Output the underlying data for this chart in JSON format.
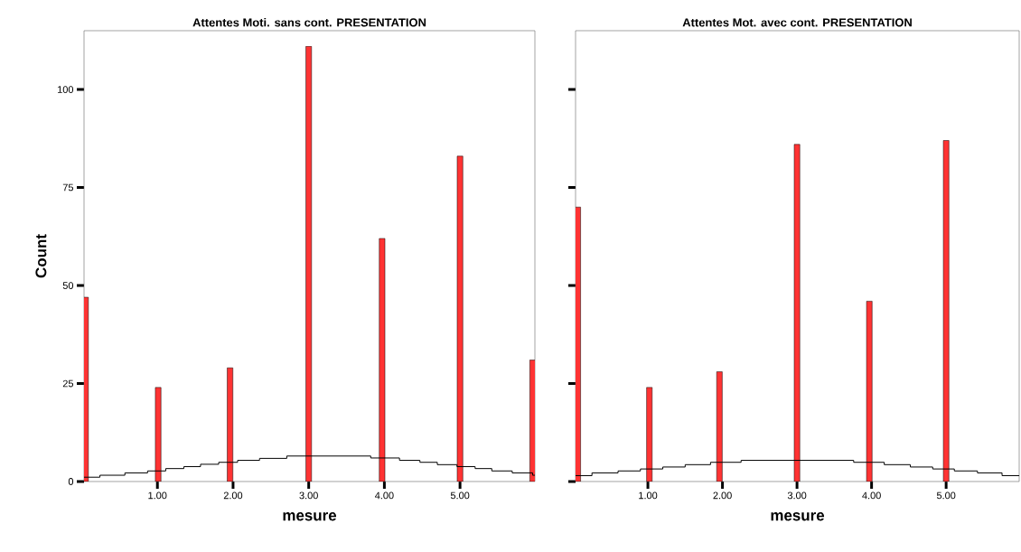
{
  "chart_data": [
    {
      "type": "bar",
      "title": "Attentes Moti. sans cont. PRESENTATION",
      "xlabel": "mesure",
      "ylabel": "Count",
      "series": [
        {
          "color": "#ff3333",
          "x": [
            0.05,
            1.01,
            1.96,
            3.0,
            3.97,
            5.0,
            5.96
          ],
          "values": [
            47,
            24,
            29,
            111,
            62,
            83,
            31
          ]
        },
        {
          "type": "step",
          "color": "#000000",
          "x": [
            0.03,
            0.24,
            0.57,
            0.87,
            1.11,
            1.35,
            1.57,
            1.81,
            2.06,
            2.35,
            2.71,
            3.82,
            4.2,
            4.47,
            4.7,
            4.96,
            5.2,
            5.42,
            5.69,
            5.96,
            5.99
          ],
          "values": [
            1.1,
            1.6,
            2.2,
            2.7,
            3.3,
            3.8,
            4.4,
            4.9,
            5.4,
            5.9,
            6.5,
            6.0,
            5.4,
            4.9,
            4.3,
            3.8,
            3.3,
            2.7,
            2.2,
            1.6,
            1.6
          ]
        }
      ],
      "xlim": [
        0.03,
        5.99
      ],
      "ylim": [
        0,
        115
      ],
      "xticks": [
        {
          "value": 1,
          "label": "1.00"
        },
        {
          "value": 2,
          "label": "2.00"
        },
        {
          "value": 3,
          "label": "3.00"
        },
        {
          "value": 4,
          "label": "4.00"
        },
        {
          "value": 5,
          "label": "5.00"
        }
      ],
      "yticks": [
        0,
        25,
        50,
        75,
        100
      ]
    },
    {
      "type": "bar",
      "title": "Attentes Mot. avec cont. PRESENTATION",
      "xlabel": "mesure",
      "series": [
        {
          "color": "#ff3333",
          "x": [
            0.06,
            1.02,
            1.96,
            3.0,
            3.97,
            5.0
          ],
          "values": [
            70,
            24,
            28,
            86,
            46,
            87
          ]
        },
        {
          "type": "step",
          "color": "#000000",
          "x": [
            0.03,
            0.25,
            0.6,
            0.9,
            1.2,
            1.5,
            1.84,
            2.25,
            3.76,
            4.17,
            4.52,
            4.82,
            5.11,
            5.42,
            5.75,
            5.98
          ],
          "values": [
            1.5,
            2.2,
            2.7,
            3.2,
            3.7,
            4.3,
            4.9,
            5.4,
            4.9,
            4.3,
            3.7,
            3.2,
            2.7,
            2.2,
            1.5,
            1.5
          ]
        }
      ],
      "xlim": [
        0.03,
        5.98
      ],
      "ylim": [
        0,
        115
      ],
      "xticks": [
        {
          "value": 1,
          "label": "1.00"
        },
        {
          "value": 2,
          "label": "2.00"
        },
        {
          "value": 3,
          "label": "3.00"
        },
        {
          "value": 4,
          "label": "4.00"
        },
        {
          "value": 5,
          "label": "5.00"
        }
      ],
      "yticks": [
        0,
        25,
        50,
        75,
        100
      ],
      "tick_labels": "x"
    }
  ]
}
